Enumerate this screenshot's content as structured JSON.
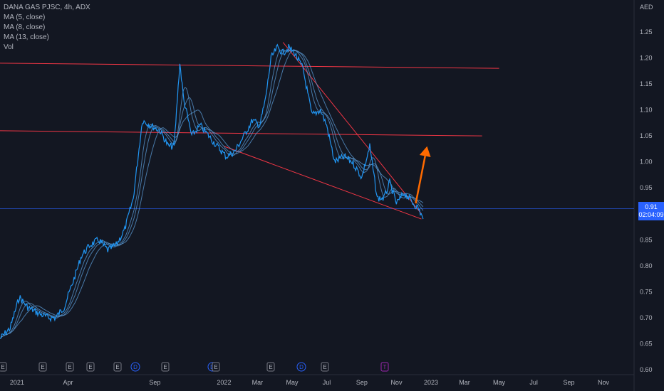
{
  "header": {
    "symbol": "DANA GAS PJSC, 4h, ADX",
    "indicators": [
      "MA (5, close)",
      "MA (8, close)",
      "MA (13, close)",
      "Vol"
    ]
  },
  "currency": "AED",
  "price_label": {
    "price": "0.91",
    "countdown": "02:04:09"
  },
  "colors": {
    "background": "#131722",
    "price_line": "#2196f3",
    "ma_line": "#5b9bd5",
    "trendline": "#f23645",
    "arrow": "#ff6a00",
    "axis_text": "#b2b5be",
    "price_badge": "#2962ff"
  },
  "chart_data": {
    "type": "line",
    "title": "DANA GAS PJSC, 4h, ADX",
    "ylabel": "AED",
    "ylim": [
      0.6,
      1.27
    ],
    "xlim": [
      "2020-12-02",
      "2023-12-25"
    ],
    "y_ticks": [
      "1.25",
      "1.20",
      "1.15",
      "1.10",
      "1.05",
      "1.00",
      "0.95",
      "0.90",
      "0.85",
      "0.80",
      "0.75",
      "0.70",
      "0.65",
      "0.60"
    ],
    "x_ticks": [
      {
        "label": "2021",
        "date": "2021-01-01"
      },
      {
        "label": "Apr",
        "date": "2021-04-01"
      },
      {
        "label": "Sep",
        "date": "2021-09-01"
      },
      {
        "label": "2022",
        "date": "2022-01-01"
      },
      {
        "label": "Mar",
        "date": "2022-03-01"
      },
      {
        "label": "May",
        "date": "2022-05-01"
      },
      {
        "label": "Jul",
        "date": "2022-07-01"
      },
      {
        "label": "Sep",
        "date": "2022-09-01"
      },
      {
        "label": "Nov",
        "date": "2022-11-01"
      },
      {
        "label": "2023",
        "date": "2023-01-01"
      },
      {
        "label": "Mar",
        "date": "2023-03-01"
      },
      {
        "label": "May",
        "date": "2023-05-01"
      },
      {
        "label": "Jul",
        "date": "2023-07-01"
      },
      {
        "label": "Sep",
        "date": "2023-09-01"
      },
      {
        "label": "Nov",
        "date": "2023-11-01"
      }
    ],
    "series": [
      {
        "values_x": [
          "2020-12-02",
          "2020-12-20",
          "2021-01-05",
          "2021-01-20",
          "2021-02-05",
          "2021-02-25",
          "2021-03-10",
          "2021-03-25",
          "2021-04-10",
          "2021-04-25",
          "2021-05-10",
          "2021-05-25",
          "2021-06-10",
          "2021-06-25",
          "2021-07-10",
          "2021-07-25",
          "2021-08-10",
          "2021-08-25",
          "2021-09-10",
          "2021-09-25",
          "2021-10-05",
          "2021-10-15",
          "2021-10-22",
          "2021-11-05",
          "2021-11-20",
          "2021-12-05",
          "2021-12-20",
          "2022-01-05",
          "2022-01-20",
          "2022-02-05",
          "2022-02-20",
          "2022-03-05",
          "2022-03-15",
          "2022-03-25",
          "2022-04-05",
          "2022-04-15",
          "2022-04-25",
          "2022-05-05",
          "2022-05-20",
          "2022-06-05",
          "2022-06-20",
          "2022-07-01",
          "2022-07-15",
          "2022-08-01",
          "2022-08-15",
          "2022-09-01",
          "2022-09-15",
          "2022-09-28",
          "2022-10-10",
          "2022-10-20",
          "2022-11-01",
          "2022-11-15",
          "2022-12-01",
          "2022-12-10",
          "2022-12-18"
        ],
        "values_y": [
          0.66,
          0.68,
          0.74,
          0.72,
          0.71,
          0.7,
          0.7,
          0.72,
          0.77,
          0.82,
          0.84,
          0.85,
          0.83,
          0.84,
          0.87,
          0.93,
          1.08,
          1.07,
          1.06,
          1.03,
          1.03,
          1.19,
          1.12,
          1.05,
          1.07,
          1.05,
          1.03,
          1.01,
          1.02,
          1.05,
          1.08,
          1.07,
          1.12,
          1.2,
          1.22,
          1.21,
          1.22,
          1.21,
          1.18,
          1.09,
          1.1,
          1.07,
          1.0,
          1.01,
          1.0,
          0.97,
          1.03,
          0.93,
          0.93,
          0.96,
          0.92,
          0.94,
          0.92,
          0.91,
          0.89
        ]
      }
    ],
    "trendlines": [
      {
        "from": [
          "2020-12-02",
          1.19
        ],
        "to": [
          "2023-05-01",
          1.18
        ]
      },
      {
        "from": [
          "2020-12-02",
          1.06
        ],
        "to": [
          "2023-04-01",
          1.05
        ]
      },
      {
        "from": [
          "2022-04-15",
          1.23
        ],
        "to": [
          "2022-12-15",
          0.9
        ]
      },
      {
        "from": [
          "2022-01-01",
          1.03
        ],
        "to": [
          "2022-12-15",
          0.89
        ]
      }
    ],
    "projection_arrow": {
      "from": [
        "2022-12-05",
        0.92
      ],
      "to": [
        "2022-12-25",
        1.03
      ]
    },
    "current_price": 0.91,
    "event_markers": [
      "E",
      "E",
      "E",
      "E",
      "E",
      "D",
      "E",
      "D",
      "E",
      "E",
      "D",
      "E",
      "T"
    ]
  }
}
